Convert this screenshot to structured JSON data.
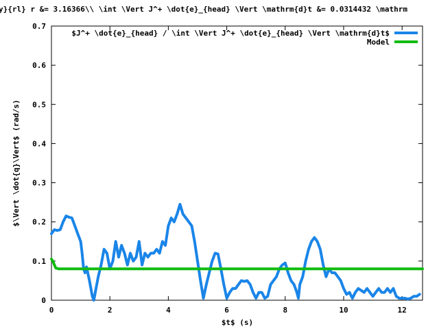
{
  "chart_data": {
    "type": "line",
    "title": "y}{rl} r &= 3.16366\\\\ \\int \\Vert J^+ \\dot{e}_{head} \\Vert \\mathrm{d}t &=  0.0314432 \\mathrm",
    "xlabel": "$t$ (s)",
    "ylabel": "$\\Vert \\dot{q}\\Vert$ (rad/s)",
    "xlim": [
      0,
      12.7
    ],
    "ylim": [
      0,
      0.7
    ],
    "xticks": [
      "0",
      "2",
      "4",
      "6",
      "8",
      "10",
      "12"
    ],
    "yticks": [
      "0",
      "0.1",
      "0.2",
      "0.3",
      "0.4",
      "0.5",
      "0.6",
      "0.7"
    ],
    "legend_position": "top-right",
    "grid": false,
    "series": [
      {
        "name": "$J^+ \\dot{e}_{head} / \\int \\Vert J^+ \\dot{e}_{head} \\Vert \\mathrm{d}t$",
        "color": "#1a85e8",
        "x": [
          0,
          0.1,
          0.2,
          0.3,
          0.4,
          0.5,
          0.6,
          0.7,
          0.8,
          0.9,
          1.0,
          1.05,
          1.1,
          1.15,
          1.2,
          1.3,
          1.4,
          1.45,
          1.5,
          1.6,
          1.7,
          1.8,
          1.9,
          2.0,
          2.1,
          2.2,
          2.3,
          2.4,
          2.5,
          2.6,
          2.7,
          2.8,
          2.9,
          3.0,
          3.1,
          3.2,
          3.3,
          3.4,
          3.5,
          3.6,
          3.7,
          3.8,
          3.9,
          4.0,
          4.1,
          4.2,
          4.3,
          4.4,
          4.5,
          4.6,
          4.7,
          4.8,
          4.9,
          5.0,
          5.1,
          5.2,
          5.3,
          5.4,
          5.5,
          5.6,
          5.7,
          5.8,
          5.9,
          6.0,
          6.1,
          6.2,
          6.3,
          6.4,
          6.5,
          6.6,
          6.7,
          6.8,
          6.9,
          7.0,
          7.1,
          7.2,
          7.3,
          7.4,
          7.5,
          7.6,
          7.7,
          7.8,
          7.9,
          8.0,
          8.1,
          8.2,
          8.3,
          8.4,
          8.45,
          8.5,
          8.6,
          8.7,
          8.8,
          8.9,
          9.0,
          9.1,
          9.2,
          9.3,
          9.4,
          9.5,
          9.6,
          9.7,
          9.8,
          9.9,
          10.0,
          10.1,
          10.2,
          10.3,
          10.4,
          10.5,
          10.6,
          10.7,
          10.8,
          10.9,
          11.0,
          11.1,
          11.2,
          11.3,
          11.4,
          11.5,
          11.6,
          11.7,
          11.8,
          11.9,
          12.0,
          12.1,
          12.2,
          12.3,
          12.4,
          12.5,
          12.6
        ],
        "y": [
          0.17,
          0.18,
          0.178,
          0.18,
          0.2,
          0.215,
          0.212,
          0.21,
          0.19,
          0.17,
          0.15,
          0.12,
          0.08,
          0.07,
          0.085,
          0.05,
          0.01,
          0.0,
          0.02,
          0.06,
          0.09,
          0.13,
          0.12,
          0.08,
          0.1,
          0.15,
          0.11,
          0.14,
          0.12,
          0.09,
          0.12,
          0.1,
          0.11,
          0.15,
          0.09,
          0.12,
          0.11,
          0.12,
          0.12,
          0.13,
          0.12,
          0.15,
          0.14,
          0.19,
          0.21,
          0.2,
          0.22,
          0.245,
          0.22,
          0.21,
          0.2,
          0.19,
          0.15,
          0.1,
          0.05,
          0.005,
          0.04,
          0.07,
          0.1,
          0.12,
          0.118,
          0.08,
          0.04,
          0.005,
          0.02,
          0.03,
          0.03,
          0.04,
          0.05,
          0.048,
          0.05,
          0.04,
          0.02,
          0.005,
          0.02,
          0.02,
          0.005,
          0.01,
          0.04,
          0.05,
          0.06,
          0.08,
          0.09,
          0.095,
          0.07,
          0.05,
          0.04,
          0.02,
          0.005,
          0.04,
          0.06,
          0.1,
          0.13,
          0.15,
          0.16,
          0.15,
          0.13,
          0.09,
          0.06,
          0.08,
          0.07,
          0.07,
          0.06,
          0.05,
          0.03,
          0.015,
          0.02,
          0.005,
          0.02,
          0.03,
          0.025,
          0.02,
          0.03,
          0.02,
          0.01,
          0.02,
          0.03,
          0.02,
          0.02,
          0.03,
          0.02,
          0.03,
          0.01,
          0.005,
          0.005,
          0.005,
          0.003,
          0.005,
          0.01,
          0.01,
          0.015
        ]
      },
      {
        "name": "Model",
        "color": "#11bb11",
        "x": [
          0,
          0.05,
          0.1,
          0.15,
          0.25,
          12.7
        ],
        "y": [
          0.105,
          0.1,
          0.09,
          0.082,
          0.08,
          0.08
        ]
      }
    ]
  }
}
